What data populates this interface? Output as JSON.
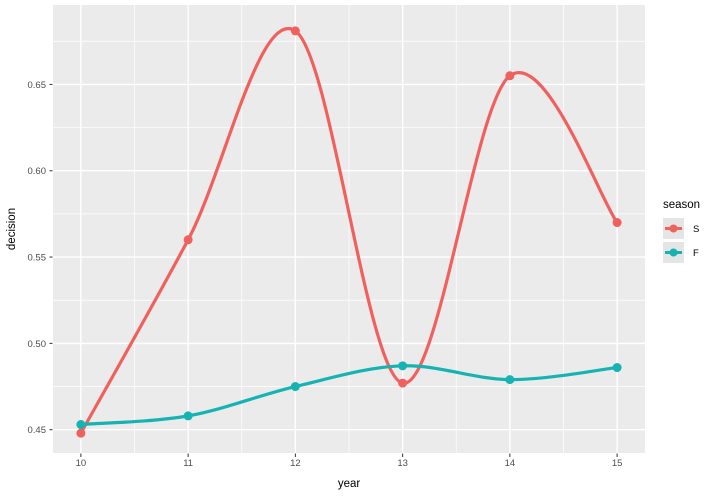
{
  "figure": {
    "xlabel": "year",
    "ylabel": "decision",
    "colors": {
      "background": "#FFFFFF",
      "panel_bg": "#EBEBEB",
      "grid": "#FFFFFF",
      "axis_text": "#4D4D4D",
      "axis_title": "#000000",
      "tick_mark": "#333333",
      "legend_key_bg": "#E5E5E5"
    }
  },
  "chart_data": {
    "type": "line",
    "smooth": true,
    "title": "",
    "xlabel": "year",
    "ylabel": "decision",
    "x": [
      10,
      11,
      12,
      13,
      14,
      15
    ],
    "series": [
      {
        "name": "S",
        "color": "#F0615D",
        "values": [
          0.448,
          0.56,
          0.681,
          0.477,
          0.655,
          0.57
        ]
      },
      {
        "name": "F",
        "color": "#17B3B3",
        "values": [
          0.453,
          0.458,
          0.475,
          0.487,
          0.479,
          0.486
        ]
      }
    ],
    "x_ticks": [
      10,
      11,
      12,
      13,
      14,
      15
    ],
    "x_tick_labels": [
      "10",
      "11",
      "12",
      "13",
      "14",
      "15"
    ],
    "y_ticks": [
      0.45,
      0.5,
      0.55,
      0.6,
      0.65
    ],
    "y_tick_labels": [
      "0.45",
      "0.50",
      "0.55",
      "0.60",
      "0.65"
    ],
    "xlim": [
      9.74,
      15.26
    ],
    "ylim": [
      0.4365,
      0.696
    ],
    "grid": true,
    "legend": {
      "title": "season",
      "position": "right",
      "entries": [
        "S",
        "F"
      ]
    }
  }
}
